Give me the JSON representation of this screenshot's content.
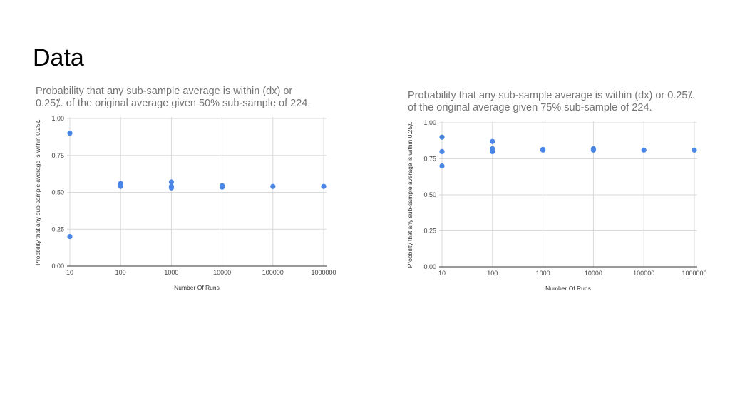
{
  "slide": {
    "title": "Data"
  },
  "colors": {
    "point": "#4a86e8",
    "grid": "#d9d9d9",
    "axis": "#333333"
  },
  "chart_data": [
    {
      "type": "scatter",
      "title_lines": [
        "Probability that any sub-sample average is within (dx) or",
        "0.25⁒. of the original average given 50% sub-sample of 224."
      ],
      "xlabel": "Number Of Runs",
      "ylabel": "Probbility that any sub-sample average is within 0.25⁒.",
      "x_scale": "log",
      "x_ticks": [
        "10",
        "100",
        "1000",
        "10000",
        "100000",
        "1000000"
      ],
      "y_ticks": [
        "1.00",
        "0.75",
        "0.50",
        "0.25",
        "0.00"
      ],
      "ylim": [
        0,
        1
      ],
      "grid": true,
      "points": [
        {
          "x": 10,
          "y": 0.9
        },
        {
          "x": 10,
          "y": 0.2
        },
        {
          "x": 100,
          "y": 0.56
        },
        {
          "x": 100,
          "y": 0.55
        },
        {
          "x": 100,
          "y": 0.54
        },
        {
          "x": 1000,
          "y": 0.57
        },
        {
          "x": 1000,
          "y": 0.54
        },
        {
          "x": 1000,
          "y": 0.53
        },
        {
          "x": 10000,
          "y": 0.545
        },
        {
          "x": 10000,
          "y": 0.535
        },
        {
          "x": 100000,
          "y": 0.54
        },
        {
          "x": 1000000,
          "y": 0.54
        }
      ]
    },
    {
      "type": "scatter",
      "title_lines": [
        "Probability that any sub-sample average is within (dx) or 0.25⁒.",
        "of the original average given 75% sub-sample of 224."
      ],
      "xlabel": "Number Of Runs",
      "ylabel": "Probbility that any sub-sample average is within 0.25⁒.",
      "x_scale": "log",
      "x_ticks": [
        "10",
        "100",
        "1000",
        "10000",
        "100000",
        "1000000"
      ],
      "y_ticks": [
        "1.00",
        "0.75",
        "0.50",
        "0.25",
        "0.00"
      ],
      "ylim": [
        0,
        1
      ],
      "grid": true,
      "points": [
        {
          "x": 10,
          "y": 0.9
        },
        {
          "x": 10,
          "y": 0.8
        },
        {
          "x": 10,
          "y": 0.7
        },
        {
          "x": 100,
          "y": 0.87
        },
        {
          "x": 100,
          "y": 0.82
        },
        {
          "x": 100,
          "y": 0.81
        },
        {
          "x": 100,
          "y": 0.8
        },
        {
          "x": 1000,
          "y": 0.815
        },
        {
          "x": 1000,
          "y": 0.81
        },
        {
          "x": 10000,
          "y": 0.82
        },
        {
          "x": 10000,
          "y": 0.81
        },
        {
          "x": 100000,
          "y": 0.81
        },
        {
          "x": 1000000,
          "y": 0.81
        }
      ]
    }
  ]
}
